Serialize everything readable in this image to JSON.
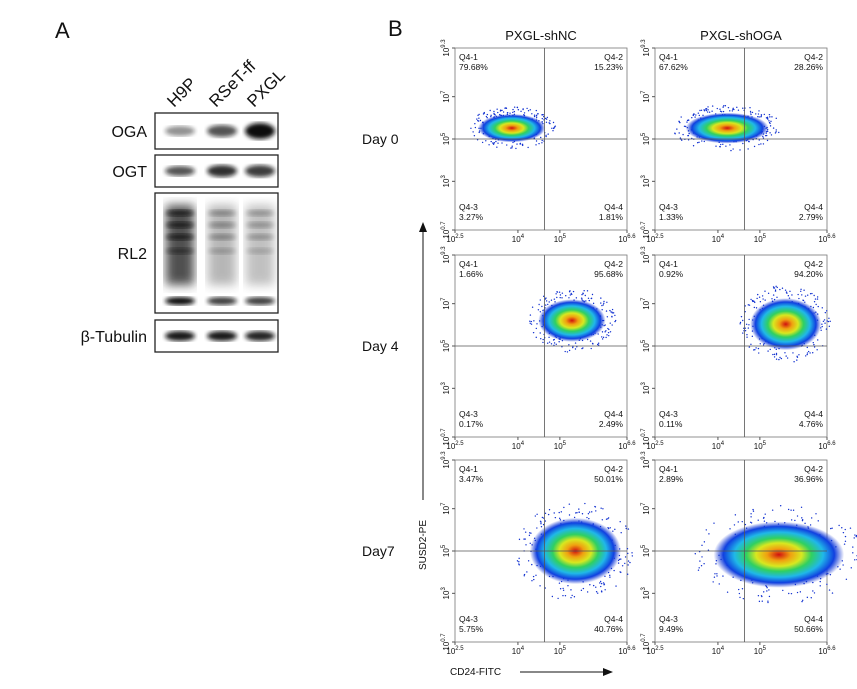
{
  "panel_a": {
    "label": "A",
    "lanes": [
      "H9P",
      "RSeT-ff",
      "PXGL"
    ],
    "blots": [
      "OGA",
      "OGT",
      "RL2",
      "β-Tubulin"
    ]
  },
  "panel_b": {
    "label": "B",
    "columns": [
      "PXGL-shNC",
      "PXGL-shOGA"
    ],
    "rows": [
      "Day 0",
      "Day 4",
      "Day7"
    ],
    "x_axis_label": "CD24-FITC",
    "y_axis_label": "SUSD2-PE",
    "xticks": [
      {
        "base": "10",
        "exp": 2.5
      },
      {
        "base": "10",
        "exp": 4
      },
      {
        "base": "10",
        "exp": 5
      },
      {
        "base": "10",
        "exp": 6.6
      }
    ],
    "yticks": [
      {
        "base": "10",
        "exp": 9.3
      },
      {
        "base": "10",
        "exp": 7
      },
      {
        "base": "10",
        "exp": 5
      },
      {
        "base": "10",
        "exp": 3
      },
      {
        "base": "10",
        "exp": 0.7
      }
    ],
    "plots": [
      [
        {
          "quadrants": [
            {
              "name": "Q4-1",
              "pct": "79.68%"
            },
            {
              "name": "Q4-2",
              "pct": "15.23%"
            },
            {
              "name": "Q4-3",
              "pct": "3.27%"
            },
            {
              "name": "Q4-4",
              "pct": "1.81%"
            }
          ]
        },
        {
          "quadrants": [
            {
              "name": "Q4-1",
              "pct": "67.62%"
            },
            {
              "name": "Q4-2",
              "pct": "28.26%"
            },
            {
              "name": "Q4-3",
              "pct": "1.33%"
            },
            {
              "name": "Q4-4",
              "pct": "2.79%"
            }
          ]
        }
      ],
      [
        {
          "quadrants": [
            {
              "name": "Q4-1",
              "pct": "1.66%"
            },
            {
              "name": "Q4-2",
              "pct": "95.68%"
            },
            {
              "name": "Q4-3",
              "pct": "0.17%"
            },
            {
              "name": "Q4-4",
              "pct": "2.49%"
            }
          ]
        },
        {
          "quadrants": [
            {
              "name": "Q4-1",
              "pct": "0.92%"
            },
            {
              "name": "Q4-2",
              "pct": "94.20%"
            },
            {
              "name": "Q4-3",
              "pct": "0.11%"
            },
            {
              "name": "Q4-4",
              "pct": "4.76%"
            }
          ]
        }
      ],
      [
        {
          "quadrants": [
            {
              "name": "Q4-1",
              "pct": "3.47%"
            },
            {
              "name": "Q4-2",
              "pct": "50.01%"
            },
            {
              "name": "Q4-3",
              "pct": "5.75%"
            },
            {
              "name": "Q4-4",
              "pct": "40.76%"
            }
          ]
        },
        {
          "quadrants": [
            {
              "name": "Q4-1",
              "pct": "2.89%"
            },
            {
              "name": "Q4-2",
              "pct": "36.96%"
            },
            {
              "name": "Q4-3",
              "pct": "9.49%"
            },
            {
              "name": "Q4-4",
              "pct": "50.66%"
            }
          ]
        }
      ]
    ]
  }
}
